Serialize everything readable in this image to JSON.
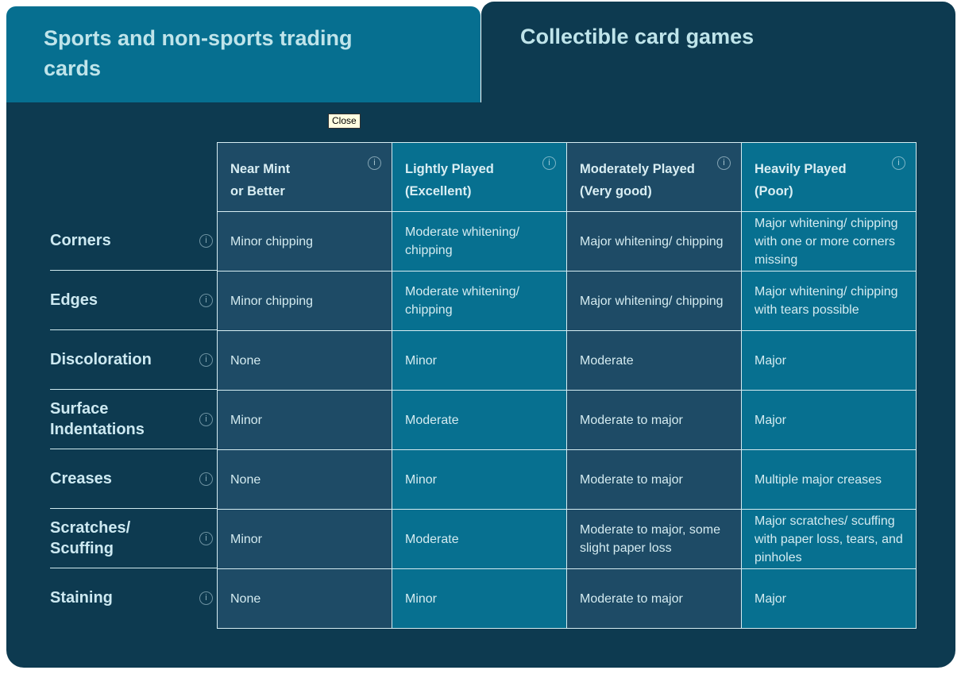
{
  "tabs": [
    {
      "label": "Sports and non-sports trading cards",
      "active": true
    },
    {
      "label": "Collectible card games",
      "active": false
    }
  ],
  "tooltip": {
    "label": "Close"
  },
  "icons": {
    "info_glyph": "i"
  },
  "table": {
    "column_headers": [
      {
        "title": "Near Mint",
        "subtitle": "or Better"
      },
      {
        "title": "Lightly Played",
        "subtitle": "(Excellent)"
      },
      {
        "title": "Moderately Played",
        "subtitle": "(Very good)"
      },
      {
        "title": "Heavily Played",
        "subtitle": "(Poor)"
      }
    ],
    "rows": [
      {
        "label": "Corners",
        "cells": [
          "Minor chipping",
          "Moderate whitening/ chipping",
          "Major whitening/ chipping",
          "Major whitening/ chipping with one or more corners missing"
        ]
      },
      {
        "label": "Edges",
        "cells": [
          "Minor chipping",
          "Moderate whitening/ chipping",
          "Major whitening/ chipping",
          "Major whitening/ chipping with tears possible"
        ]
      },
      {
        "label": "Discoloration",
        "cells": [
          "None",
          "Minor",
          "Moderate",
          "Major"
        ]
      },
      {
        "label": "Surface Indentations",
        "cells": [
          "Minor",
          "Moderate",
          "Moderate to major",
          "Major"
        ]
      },
      {
        "label": "Creases",
        "cells": [
          "None",
          "Minor",
          "Moderate to major",
          "Multiple major creases"
        ]
      },
      {
        "label": "Scratches/ Scuffing",
        "cells": [
          "Minor",
          "Moderate",
          "Moderate to major, some slight paper loss",
          "Major scratches/ scuffing with paper loss, tears, and pinholes"
        ]
      },
      {
        "label": "Staining",
        "cells": [
          "None",
          "Minor",
          "Moderate to major",
          "Major"
        ]
      }
    ]
  },
  "colors": {
    "accent_teal": "#077090",
    "panel_navy": "#0d3a50",
    "cell_dark": "#1e4b66",
    "grid_border": "#d6edf2",
    "tooltip_bg": "#ffffe1"
  }
}
